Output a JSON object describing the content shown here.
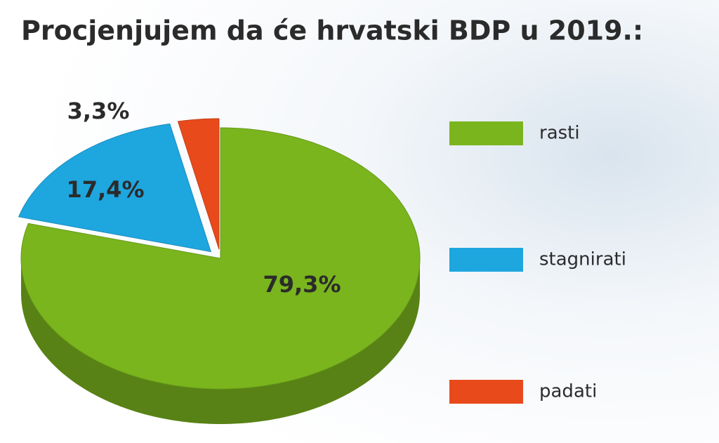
{
  "chart_data": {
    "type": "pie",
    "title": "Procjenjujem da će hrvatski BDP u 2019.:",
    "categories": [
      "rasti",
      "stagnirati",
      "padati"
    ],
    "values": [
      79.3,
      17.4,
      3.3
    ],
    "value_labels": [
      "79,3%",
      "17,4%",
      "3,3%"
    ],
    "colors": [
      "#7ab51d",
      "#1ea6df",
      "#e84a1c"
    ]
  }
}
